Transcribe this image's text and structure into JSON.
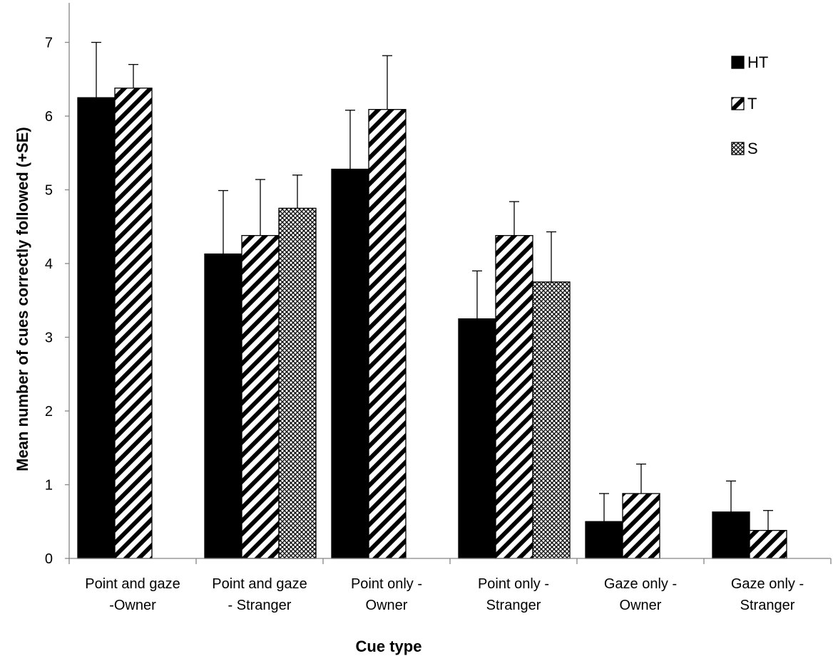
{
  "chart_data": {
    "type": "bar",
    "title": "",
    "xlabel": "Cue type",
    "ylabel": "Mean number of cues correctly followed (+SE)",
    "ylim": [
      0,
      7
    ],
    "yticks": [
      0,
      1,
      2,
      3,
      4,
      5,
      6,
      7
    ],
    "grid": false,
    "legend_position": "top-right",
    "categories": [
      [
        "Point and gaze",
        "-Owner"
      ],
      [
        "Point and gaze",
        "- Stranger"
      ],
      [
        "Point only -",
        "Owner"
      ],
      [
        "Point only -",
        "Stranger"
      ],
      [
        "Gaze only -",
        "Owner"
      ],
      [
        "Gaze only -",
        "Stranger"
      ]
    ],
    "series": [
      {
        "name": "HT",
        "pattern": "solid-black",
        "values": [
          6.25,
          4.13,
          5.28,
          3.25,
          0.5,
          0.63
        ],
        "errors": [
          0.75,
          0.86,
          0.8,
          0.65,
          0.38,
          0.42
        ]
      },
      {
        "name": "T",
        "pattern": "diagonal-stripes",
        "values": [
          6.38,
          4.38,
          6.09,
          4.38,
          0.88,
          0.38
        ],
        "errors": [
          0.32,
          0.76,
          0.73,
          0.46,
          0.4,
          0.27
        ]
      },
      {
        "name": "S",
        "pattern": "crosshatch-gray",
        "values": [
          null,
          4.75,
          null,
          3.75,
          null,
          null
        ],
        "errors": [
          null,
          0.45,
          null,
          0.68,
          null,
          null
        ]
      }
    ]
  }
}
